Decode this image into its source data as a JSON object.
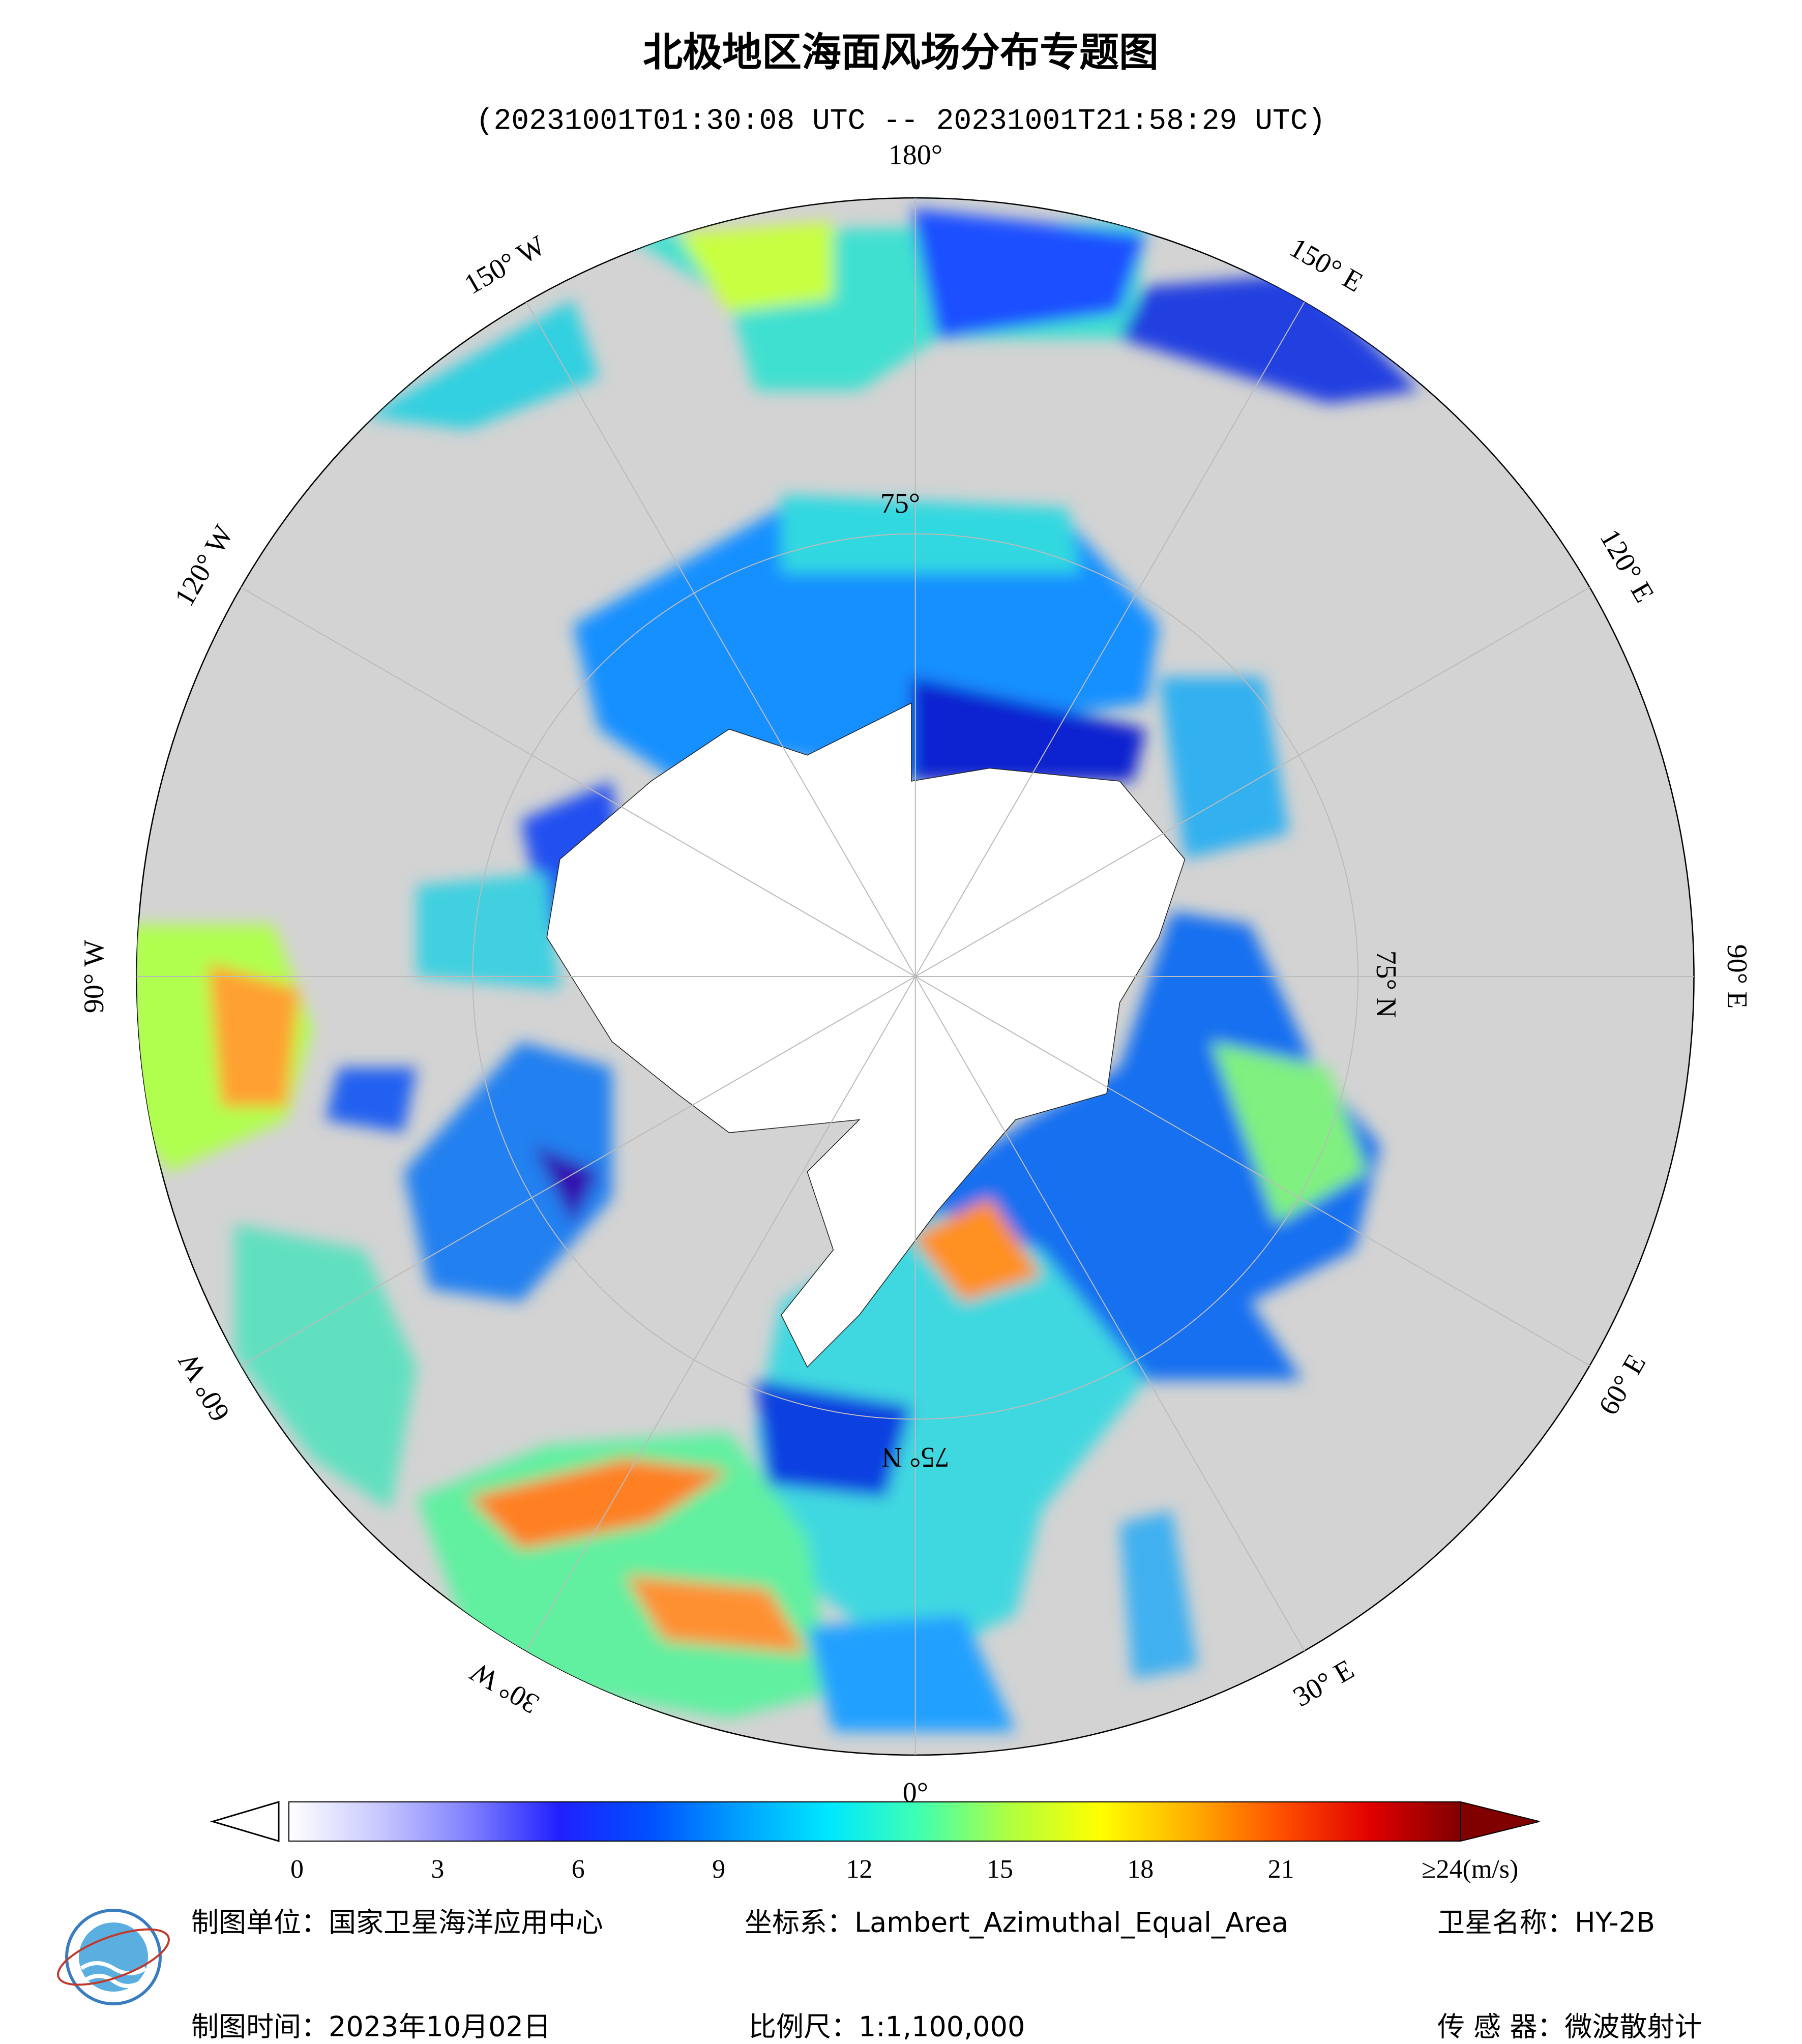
{
  "map": {
    "title": "北极地区海面风场分布专题图",
    "subtitle": "(20231001T01:30:08 UTC -- 20231001T21:58:29 UTC)",
    "longitude_labels": [
      "0°",
      "30° E",
      "60° E",
      "90° E",
      "120° E",
      "150° E",
      "180°",
      "150° W",
      "120° W",
      "90° W",
      "60° W",
      "30° W"
    ],
    "latitude_labels": [
      "75°",
      "75° N",
      "75° N"
    ]
  },
  "colorbar": {
    "lim": [
      0,
      24
    ],
    "ticks": [
      0,
      3,
      6,
      9,
      12,
      15,
      18,
      21,
      {
        "value": 24,
        "label": "≥24(m/s)"
      }
    ],
    "colors": [
      "#ffffff",
      "#c8c8ff",
      "#8080ff",
      "#2020ff",
      "#0050ff",
      "#00a0ff",
      "#00e8ff",
      "#40ffb0",
      "#b0ff40",
      "#ffff00",
      "#ffb000",
      "#ff5000",
      "#e00000",
      "#800000"
    ],
    "over_color": "#800000"
  },
  "footer": {
    "unit": "制图单位：国家卫星海洋应用中心",
    "date": "制图时间：2023年10月02日",
    "projection": "坐标系：Lambert_Azimuthal_Equal_Area",
    "scale": "比例尺：1:1,100,000",
    "satellite": "卫星名称：HY-2B",
    "sensor": "传 感 器：微波散射计"
  }
}
